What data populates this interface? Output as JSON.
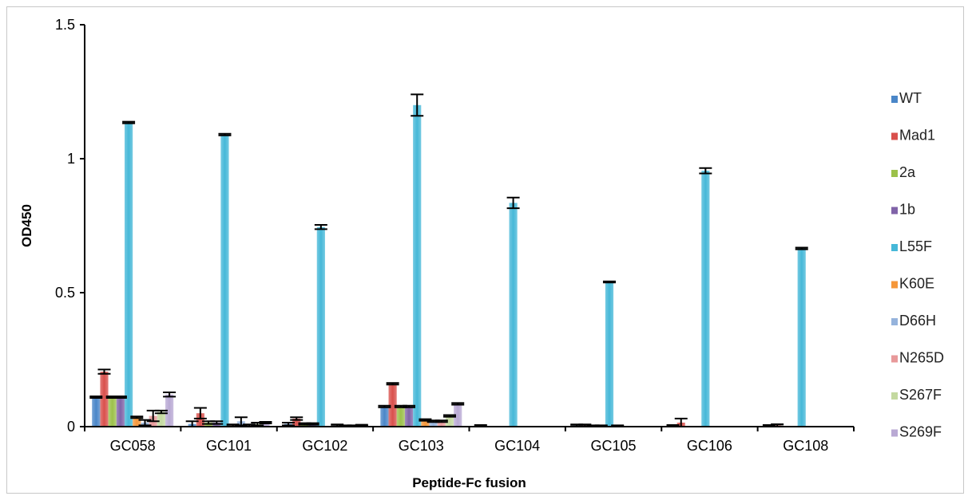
{
  "chart_data": {
    "type": "bar",
    "title": "",
    "xlabel": "Peptide-Fc fusion",
    "ylabel": "OD450",
    "ylim": [
      0,
      1.5
    ],
    "yticks": [
      "0",
      "0.5",
      "1",
      "1.5"
    ],
    "ytick_values": [
      0,
      0.5,
      1,
      1.5
    ],
    "grid": false,
    "legend_position": "right",
    "categories": [
      "GC058",
      "GC101",
      "GC102",
      "GC103",
      "GC104",
      "GC105",
      "GC106",
      "GC108"
    ],
    "series": [
      {
        "name": "WT",
        "color": "#4a86c8",
        "values": [
          0.11,
          0.01,
          0.01,
          0.075,
          0.003,
          0.005,
          0.003,
          0.003
        ],
        "errors": [
          0.003,
          0.01,
          0.005,
          0.003,
          0.003,
          0.003,
          0.003,
          0.003
        ]
      },
      {
        "name": "Mad1",
        "color": "#d9504c",
        "values": [
          0.205,
          0.05,
          0.03,
          0.16,
          0.0,
          0.005,
          0.015,
          0.005
        ],
        "errors": [
          0.008,
          0.02,
          0.005,
          0.003,
          0.0,
          0.003,
          0.015,
          0.004
        ]
      },
      {
        "name": "2a",
        "color": "#9cc14a",
        "values": [
          0.11,
          0.015,
          0.01,
          0.075,
          0.0,
          0.003,
          0.0,
          0.0
        ],
        "errors": [
          0.003,
          0.005,
          0.003,
          0.003,
          0.0,
          0.002,
          0.0,
          0.0
        ]
      },
      {
        "name": "1b",
        "color": "#8063a8",
        "values": [
          0.11,
          0.015,
          0.01,
          0.075,
          0.0,
          0.003,
          0.0,
          0.0
        ],
        "errors": [
          0.003,
          0.005,
          0.003,
          0.003,
          0.0,
          0.002,
          0.0,
          0.0
        ]
      },
      {
        "name": "L55F",
        "color": "#46b8d8",
        "values": [
          1.135,
          1.09,
          0.745,
          1.2,
          0.835,
          0.54,
          0.955,
          0.665
        ],
        "errors": [
          0.003,
          0.003,
          0.008,
          0.04,
          0.02,
          0.002,
          0.01,
          0.003
        ]
      },
      {
        "name": "K60E",
        "color": "#f5973a",
        "values": [
          0.035,
          0.005,
          0.0,
          0.025,
          0.0,
          0.003,
          0.0,
          0.0
        ],
        "errors": [
          0.003,
          0.003,
          0.0,
          0.003,
          0.0,
          0.002,
          0.0,
          0.0
        ]
      },
      {
        "name": "D66H",
        "color": "#95b3dc",
        "values": [
          0.015,
          0.02,
          0.005,
          0.02,
          0.0,
          0.0,
          0.0,
          0.0
        ],
        "errors": [
          0.01,
          0.015,
          0.003,
          0.003,
          0.0,
          0.0,
          0.0,
          0.0
        ]
      },
      {
        "name": "N265D",
        "color": "#e8999a",
        "values": [
          0.04,
          0.005,
          0.003,
          0.02,
          0.0,
          0.0,
          0.0,
          0.0
        ],
        "errors": [
          0.02,
          0.003,
          0.002,
          0.003,
          0.0,
          0.0,
          0.0,
          0.0
        ]
      },
      {
        "name": "S267F",
        "color": "#c4d9a0",
        "values": [
          0.055,
          0.01,
          0.003,
          0.04,
          0.0,
          0.0,
          0.0,
          0.0
        ],
        "errors": [
          0.005,
          0.005,
          0.002,
          0.003,
          0.0,
          0.0,
          0.0,
          0.0
        ]
      },
      {
        "name": "S269F",
        "color": "#b9a9d4",
        "values": [
          0.12,
          0.015,
          0.005,
          0.085,
          0.0,
          0.0,
          0.0,
          0.0
        ],
        "errors": [
          0.008,
          0.003,
          0.002,
          0.003,
          0.0,
          0.0,
          0.0,
          0.0
        ]
      }
    ]
  }
}
